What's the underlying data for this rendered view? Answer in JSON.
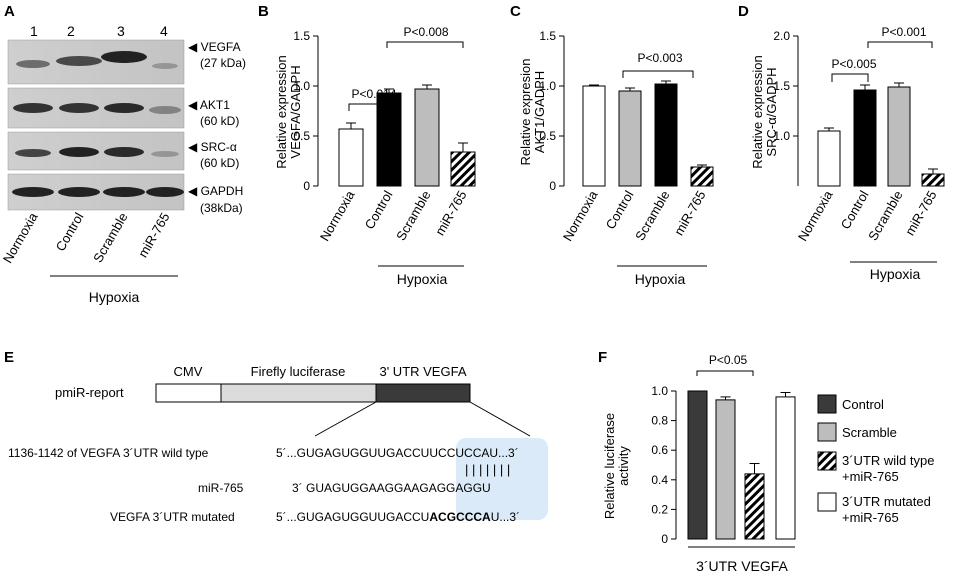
{
  "panels": {
    "A": {
      "letter": "A",
      "lanes": [
        "1",
        "2",
        "3",
        "4"
      ],
      "blots": [
        {
          "name": "VEGFA",
          "size": "(27 kDa)"
        },
        {
          "name": "AKT1",
          "size": "(60 kD)"
        },
        {
          "name": "SRC-α",
          "size": "(60 kD)"
        },
        {
          "name": "GAPDH",
          "size": "(38kDa)"
        }
      ],
      "conditions": [
        "Normoxia",
        "Control",
        "Scramble",
        "miR-765"
      ],
      "group_label": "Hypoxia"
    },
    "B": {
      "letter": "B",
      "ylabel_lines": [
        "Relative expression",
        "VEGFA/GADPH"
      ],
      "pvalues": [
        "P<0.014",
        "P<0.008"
      ],
      "group_label": "Hypoxia"
    },
    "C": {
      "letter": "C",
      "ylabel_lines": [
        "Relative expresion",
        "AKT1/GADPH"
      ],
      "pvalues": [
        "P<0.003"
      ],
      "group_label": "Hypoxia"
    },
    "D": {
      "letter": "D",
      "ylabel_lines": [
        "Relative expression",
        "SRC-α/GADPH"
      ],
      "pvalues": [
        "P<0.005",
        "P<0.001"
      ],
      "group_label": "Hypoxia"
    },
    "E": {
      "letter": "E",
      "construct_name": "pmiR-report",
      "segments": [
        {
          "label": "CMV",
          "color": "#ffffff"
        },
        {
          "label": "Firefly luciferase",
          "color": "#dcdcdc"
        },
        {
          "label": "3' UTR VEGFA",
          "color": "#3a3a3a"
        }
      ],
      "rows": [
        {
          "label": "1136-1142 of VEGFA 3´UTR wild type",
          "seq_pre": "5´...GUGAGUGGUUGACCU",
          "seq_mid": "UCCUCCA",
          "seq_post": "U...3´"
        },
        {
          "label": "miR-765",
          "seq_pre": "3´  GUAGUGGAAGGAAG",
          "seq_mid": "AGGAGGU",
          "seq_post": ""
        },
        {
          "label": "VEGFA 3´UTR mutated",
          "seq_pre": "5´...GUGAGUGGUUGACCU",
          "seq_mid": "ACGCCCA",
          "seq_post": "U...3´"
        }
      ],
      "pairing": "|||||||"
    },
    "F": {
      "letter": "F",
      "ylabel_lines": [
        "Relative luciferase",
        "activity"
      ],
      "pvalue": "P<0.05",
      "xlabel": "3´UTR VEGFA",
      "legend": [
        {
          "line1": "Control",
          "line2": ""
        },
        {
          "line1": "Scramble",
          "line2": ""
        },
        {
          "line1": "3´UTR wild type",
          "line2": "+miR-765"
        },
        {
          "line1": "3´UTR mutated",
          "line2": "+miR-765"
        }
      ]
    }
  },
  "chart_data": [
    {
      "type": "bar",
      "panel": "B",
      "categories": [
        "Normoxia",
        "Control",
        "Scramble",
        "miR-765"
      ],
      "values": [
        0.57,
        0.93,
        0.97,
        0.34
      ],
      "errors": [
        0.06,
        0.04,
        0.04,
        0.09
      ],
      "ylim": [
        0,
        1.5
      ],
      "yticks": [
        "0",
        "0.5",
        "1.0",
        "1.5"
      ],
      "fills": [
        "#ffffff",
        "#000000",
        "#bdbdbd",
        "hatch"
      ]
    },
    {
      "type": "bar",
      "panel": "C",
      "categories": [
        "Normoxia",
        "Control",
        "Scramble",
        "miR-765"
      ],
      "values": [
        1.0,
        0.95,
        1.02,
        0.19
      ],
      "errors": [
        0.01,
        0.03,
        0.03,
        0.02
      ],
      "ylim": [
        0,
        1.5
      ],
      "yticks": [
        "0",
        "0.5",
        "1.0",
        "1.5"
      ],
      "fills": [
        "#ffffff",
        "#bdbdbd",
        "#000000",
        "hatch"
      ]
    },
    {
      "type": "bar",
      "panel": "D",
      "categories": [
        "Normoxia",
        "Control",
        "Scramble",
        "miR-765"
      ],
      "values": [
        1.05,
        1.46,
        1.49,
        0.62
      ],
      "errors": [
        0.03,
        0.05,
        0.04,
        0.05
      ],
      "ylim": [
        0.5,
        2.0
      ],
      "yticks": [
        "1.0",
        "1.5",
        "2.0"
      ],
      "fills": [
        "#ffffff",
        "#000000",
        "#bdbdbd",
        "hatch"
      ]
    },
    {
      "type": "bar",
      "panel": "F",
      "categories": [
        "Control",
        "Scramble",
        "3´UTR wild type +miR-765",
        "3´UTR mutated +miR-765"
      ],
      "values": [
        1.0,
        0.94,
        0.44,
        0.96
      ],
      "errors": [
        0.0,
        0.02,
        0.07,
        0.03
      ],
      "ylim": [
        0,
        1.0
      ],
      "yticks": [
        "0",
        "0.2",
        "0.4",
        "0.6",
        "0.8",
        "1.0"
      ],
      "fills": [
        "#3a3a3a",
        "#bdbdbd",
        "hatch",
        "#ffffff"
      ]
    }
  ]
}
